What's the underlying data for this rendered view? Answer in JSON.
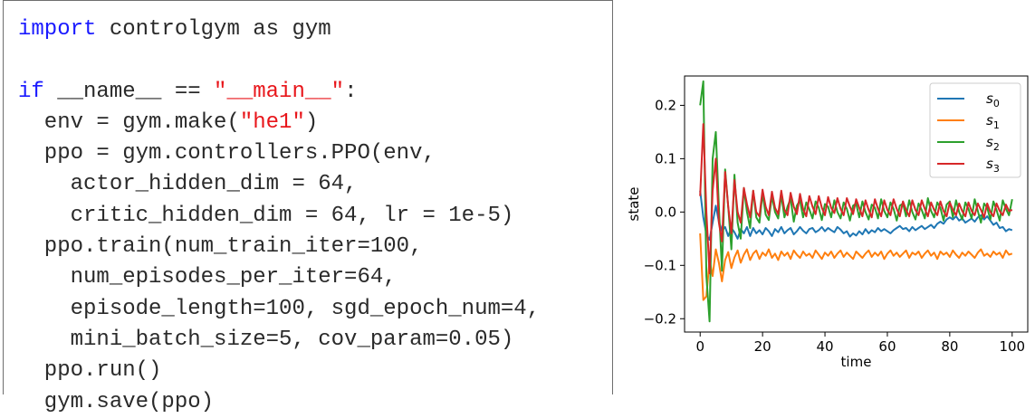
{
  "code": {
    "lines": [
      [
        {
          "t": "import",
          "k": "kw"
        },
        {
          "t": " controlgym as gym",
          "k": ""
        }
      ],
      [],
      [
        {
          "t": "if",
          "k": "kw"
        },
        {
          "t": " __name__ == ",
          "k": ""
        },
        {
          "t": "\"__main__\"",
          "k": "str"
        },
        {
          "t": ":",
          "k": ""
        }
      ],
      [
        {
          "t": "  env = gym.make(",
          "k": ""
        },
        {
          "t": "\"he1\"",
          "k": "str"
        },
        {
          "t": ")",
          "k": ""
        }
      ],
      [
        {
          "t": "  ppo = gym.controllers.PPO(env,",
          "k": ""
        }
      ],
      [
        {
          "t": "    actor_hidden_dim = 64,",
          "k": ""
        }
      ],
      [
        {
          "t": "    critic_hidden_dim = 64, lr = 1e-5)",
          "k": ""
        }
      ],
      [
        {
          "t": "  ppo.train(num_train_iter=100,",
          "k": ""
        }
      ],
      [
        {
          "t": "    num_episodes_per_iter=64,",
          "k": ""
        }
      ],
      [
        {
          "t": "    episode_length=100, sgd_epoch_num=4,",
          "k": ""
        }
      ],
      [
        {
          "t": "    mini_batch_size=5, cov_param=0.05)",
          "k": ""
        }
      ],
      [
        {
          "t": "  ppo.run()",
          "k": ""
        }
      ],
      [
        {
          "t": "  gym.save(ppo)",
          "k": ""
        }
      ]
    ]
  },
  "chart_data": {
    "type": "line",
    "xlabel": "time",
    "ylabel": "state",
    "xlim": [
      -5,
      105
    ],
    "ylim": [
      -0.225,
      0.255
    ],
    "xticks": [
      0,
      20,
      40,
      60,
      80,
      100
    ],
    "yticks": [
      -0.2,
      -0.1,
      0.0,
      0.1,
      0.2
    ],
    "ytick_labels": [
      "−0.2",
      "−0.1",
      "0.0",
      "0.1",
      "0.2"
    ],
    "grid": false,
    "legend_position": "top-right",
    "series": [
      {
        "name": "s",
        "sub": "0",
        "color": "#1f77b4",
        "values": [
          0.04,
          -0.01,
          -0.042,
          -0.052,
          -0.02,
          0.012,
          -0.018,
          -0.035,
          -0.028,
          -0.045,
          -0.03,
          -0.038,
          -0.05,
          -0.032,
          -0.04,
          -0.028,
          -0.045,
          -0.03,
          -0.04,
          -0.034,
          -0.042,
          -0.03,
          -0.036,
          -0.045,
          -0.032,
          -0.038,
          -0.028,
          -0.04,
          -0.034,
          -0.03,
          -0.042,
          -0.036,
          -0.028,
          -0.035,
          -0.04,
          -0.032,
          -0.03,
          -0.038,
          -0.034,
          -0.028,
          -0.036,
          -0.03,
          -0.034,
          -0.038,
          -0.028,
          -0.033,
          -0.04,
          -0.036,
          -0.046,
          -0.04,
          -0.044,
          -0.036,
          -0.042,
          -0.032,
          -0.04,
          -0.034,
          -0.038,
          -0.03,
          -0.036,
          -0.032,
          -0.036,
          -0.04,
          -0.034,
          -0.03,
          -0.026,
          -0.032,
          -0.03,
          -0.036,
          -0.028,
          -0.034,
          -0.03,
          -0.026,
          -0.032,
          -0.028,
          -0.024,
          -0.03,
          -0.022,
          -0.018,
          -0.022,
          -0.014,
          -0.01,
          -0.014,
          -0.008,
          -0.016,
          -0.012,
          -0.02,
          -0.016,
          -0.012,
          -0.018,
          -0.01,
          -0.006,
          -0.014,
          -0.008,
          -0.016,
          -0.024,
          -0.02,
          -0.03,
          -0.028,
          -0.036,
          -0.032,
          -0.034
        ]
      },
      {
        "name": "s",
        "sub": "1",
        "color": "#ff7f0e",
        "values": [
          -0.04,
          -0.165,
          -0.158,
          -0.09,
          -0.12,
          -0.07,
          -0.095,
          -0.13,
          -0.09,
          -0.075,
          -0.105,
          -0.085,
          -0.072,
          -0.095,
          -0.08,
          -0.07,
          -0.09,
          -0.078,
          -0.072,
          -0.088,
          -0.076,
          -0.082,
          -0.07,
          -0.086,
          -0.078,
          -0.09,
          -0.074,
          -0.082,
          -0.076,
          -0.088,
          -0.072,
          -0.08,
          -0.086,
          -0.074,
          -0.082,
          -0.078,
          -0.086,
          -0.072,
          -0.08,
          -0.088,
          -0.076,
          -0.082,
          -0.074,
          -0.086,
          -0.078,
          -0.072,
          -0.084,
          -0.076,
          -0.082,
          -0.088,
          -0.074,
          -0.08,
          -0.086,
          -0.078,
          -0.072,
          -0.084,
          -0.076,
          -0.082,
          -0.074,
          -0.088,
          -0.078,
          -0.072,
          -0.082,
          -0.076,
          -0.084,
          -0.078,
          -0.072,
          -0.086,
          -0.076,
          -0.08,
          -0.074,
          -0.086,
          -0.078,
          -0.072,
          -0.082,
          -0.076,
          -0.088,
          -0.074,
          -0.08,
          -0.076,
          -0.084,
          -0.072,
          -0.08,
          -0.086,
          -0.076,
          -0.082,
          -0.074,
          -0.08,
          -0.086,
          -0.076,
          -0.07,
          -0.082,
          -0.078,
          -0.084,
          -0.074,
          -0.08,
          -0.076,
          -0.086,
          -0.072,
          -0.08,
          -0.078
        ]
      },
      {
        "name": "s",
        "sub": "2",
        "color": "#2ca02c",
        "values": [
          0.2,
          0.245,
          -0.12,
          -0.205,
          0.1,
          0.15,
          0.01,
          -0.11,
          0.08,
          0.01,
          -0.07,
          0.07,
          -0.02,
          -0.05,
          0.045,
          0.0,
          -0.03,
          0.04,
          -0.01,
          -0.02,
          0.035,
          -0.005,
          -0.015,
          0.03,
          0.0,
          -0.012,
          0.032,
          -0.01,
          0.01,
          0.025,
          -0.018,
          0.012,
          0.022,
          -0.01,
          0.018,
          0.005,
          -0.012,
          0.02,
          0.008,
          -0.015,
          0.015,
          0.01,
          -0.01,
          0.022,
          0.0,
          -0.012,
          0.018,
          0.006,
          -0.016,
          0.012,
          0.016,
          -0.01,
          0.02,
          0.0,
          -0.014,
          0.014,
          0.008,
          -0.012,
          0.024,
          0.002,
          -0.01,
          0.018,
          0.006,
          -0.016,
          0.012,
          0.016,
          -0.008,
          0.022,
          0.0,
          -0.014,
          0.016,
          0.004,
          -0.012,
          0.026,
          0.002,
          -0.01,
          0.018,
          0.008,
          -0.016,
          0.014,
          0.02,
          -0.01,
          0.022,
          0.0,
          -0.014,
          0.018,
          0.006,
          -0.012,
          0.024,
          0.002,
          -0.02,
          0.016,
          0.008,
          -0.014,
          0.02,
          0.004,
          -0.016,
          0.022,
          0.006,
          -0.006,
          0.024
        ]
      },
      {
        "name": "s",
        "sub": "3",
        "color": "#d62728",
        "values": [
          0.03,
          0.165,
          0.0,
          -0.115,
          0.04,
          0.1,
          -0.02,
          -0.055,
          0.075,
          0.01,
          -0.04,
          0.06,
          0.0,
          -0.02,
          0.045,
          0.015,
          -0.01,
          0.04,
          0.0,
          -0.008,
          0.042,
          0.01,
          -0.006,
          0.038,
          0.008,
          -0.004,
          0.04,
          0.004,
          -0.006,
          0.036,
          0.01,
          -0.004,
          0.034,
          0.006,
          -0.008,
          0.03,
          0.01,
          -0.004,
          0.03,
          0.008,
          -0.006,
          0.028,
          0.008,
          -0.002,
          0.026,
          0.006,
          -0.006,
          0.026,
          0.01,
          -0.004,
          0.024,
          0.008,
          -0.008,
          0.022,
          0.004,
          -0.01,
          0.024,
          0.006,
          -0.008,
          0.022,
          0.004,
          -0.006,
          0.024,
          0.006,
          -0.008,
          0.02,
          0.004,
          -0.008,
          0.022,
          0.004,
          -0.006,
          0.022,
          0.006,
          -0.008,
          0.018,
          0.004,
          -0.006,
          0.02,
          0.002,
          -0.008,
          0.018,
          0.004,
          -0.006,
          0.016,
          0.002,
          -0.008,
          0.018,
          0.002,
          -0.006,
          0.016,
          0.004,
          -0.01,
          0.016,
          0.0,
          -0.008,
          0.016,
          0.002,
          -0.006,
          0.014,
          0.002,
          0.004
        ]
      }
    ]
  }
}
